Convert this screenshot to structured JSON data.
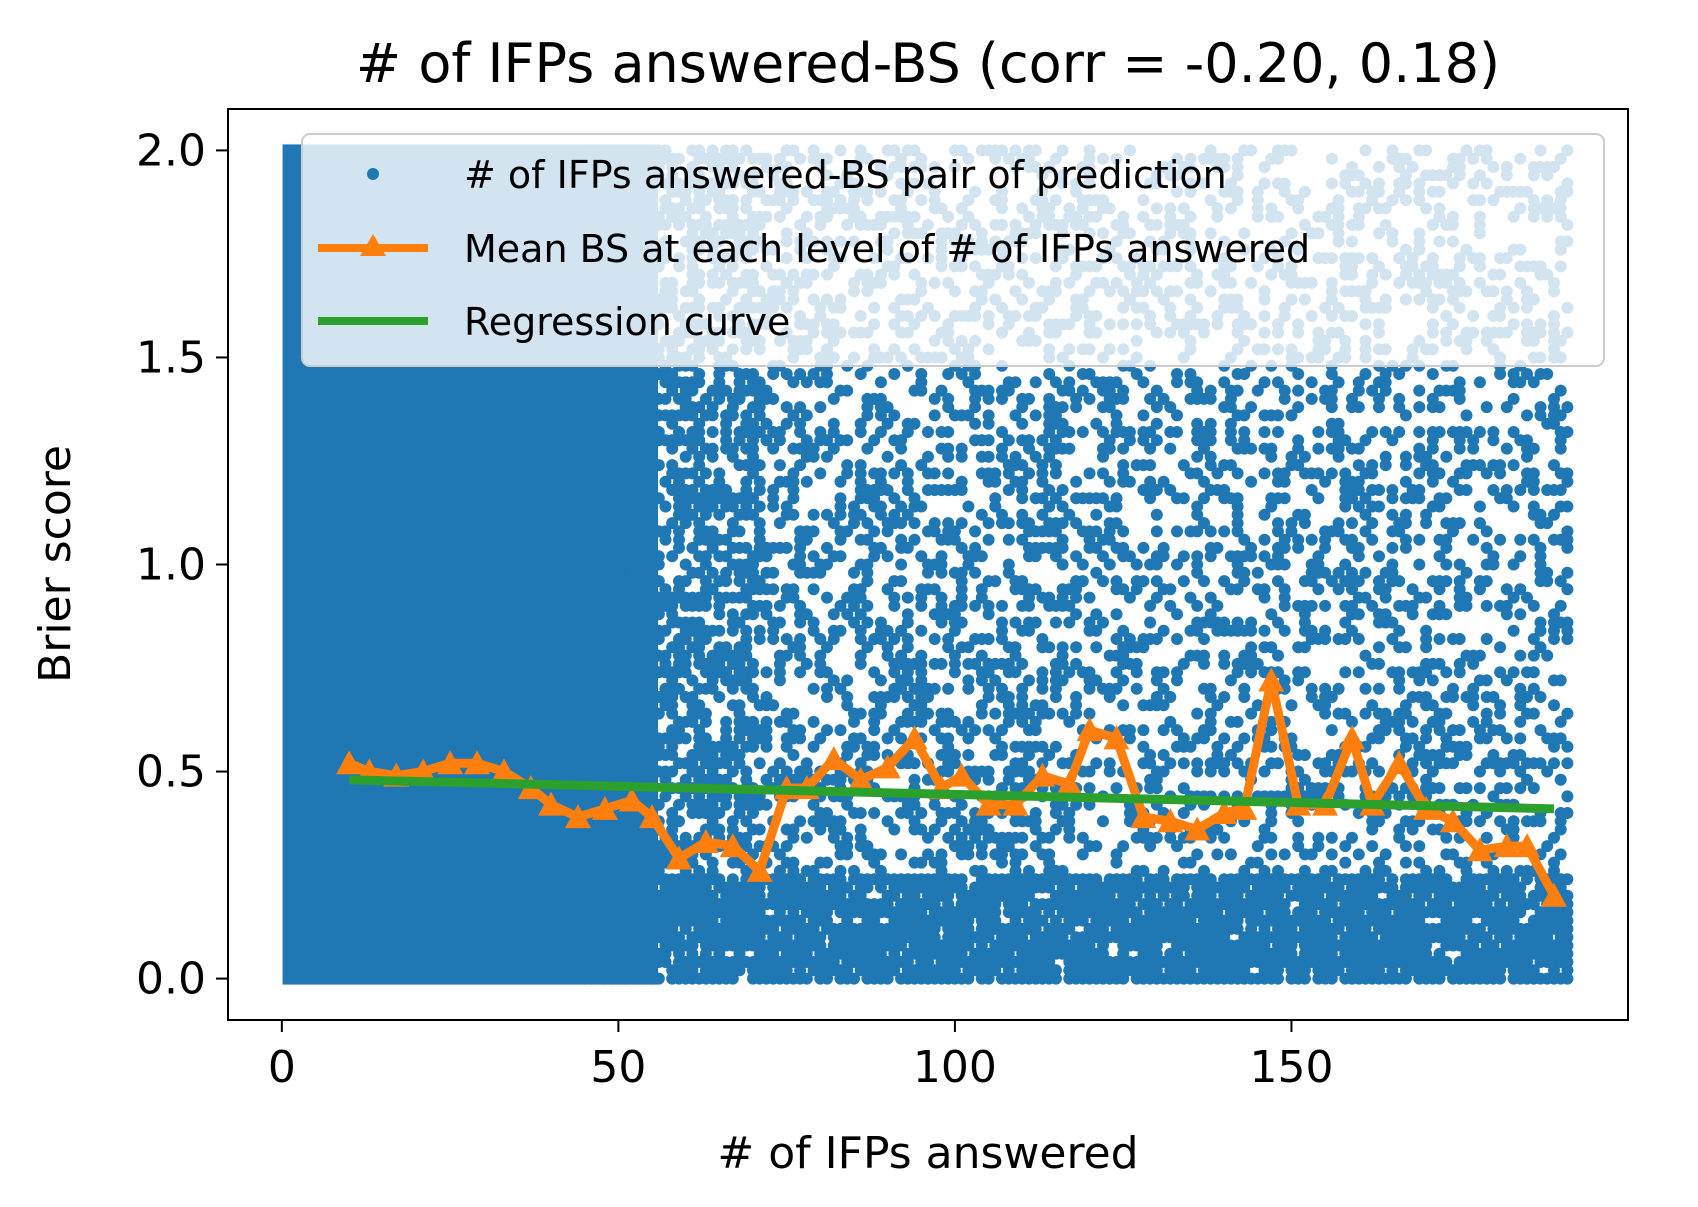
{
  "chart_data": {
    "type": "scatter",
    "title": "# of IFPs answered-BS (corr = -0.20, 0.18)",
    "xlabel": "# of IFPs answered",
    "ylabel": "Brier score",
    "xlim": [
      -8,
      200
    ],
    "ylim": [
      -0.1,
      2.1
    ],
    "xticks": [
      0,
      50,
      100,
      150
    ],
    "xtick_labels": [
      "0",
      "50",
      "100",
      "150"
    ],
    "yticks": [
      0.0,
      0.5,
      1.0,
      1.5,
      2.0
    ],
    "ytick_labels": [
      "0.0",
      "0.5",
      "1.0",
      "1.5",
      "2.0"
    ],
    "grid": false,
    "legend_position": "top-right",
    "colors": {
      "scatter": "#1f77b4",
      "mean": "#ff7f0e",
      "regression": "#2ca02c"
    },
    "scatter_summary": {
      "x_range": [
        1,
        191
      ],
      "y_range": [
        0.0,
        2.0
      ]
    },
    "series": [
      {
        "name": "# of IFPs answered-BS pair of prediction",
        "kind": "scatter"
      },
      {
        "name": "Mean BS at each level of # of IFPs answered",
        "kind": "line",
        "marker": "triangle",
        "x": [
          10,
          13,
          17,
          21,
          25,
          29,
          33,
          37,
          40,
          44,
          48,
          52,
          55,
          59,
          63,
          67,
          71,
          75,
          78,
          82,
          86,
          90,
          94,
          98,
          101,
          105,
          109,
          113,
          117,
          120,
          124,
          128,
          132,
          136,
          140,
          143,
          147,
          151,
          155,
          159,
          162,
          166,
          170,
          174,
          178,
          182,
          185,
          189
        ],
        "y": [
          0.52,
          0.5,
          0.49,
          0.5,
          0.52,
          0.52,
          0.5,
          0.46,
          0.42,
          0.39,
          0.41,
          0.43,
          0.39,
          0.29,
          0.33,
          0.32,
          0.26,
          0.46,
          0.46,
          0.53,
          0.48,
          0.51,
          0.58,
          0.46,
          0.49,
          0.42,
          0.42,
          0.49,
          0.47,
          0.6,
          0.58,
          0.39,
          0.38,
          0.36,
          0.4,
          0.41,
          0.72,
          0.42,
          0.42,
          0.58,
          0.42,
          0.52,
          0.41,
          0.38,
          0.31,
          0.32,
          0.32,
          0.2
        ]
      },
      {
        "name": "Regression curve",
        "kind": "line",
        "x": [
          10,
          189
        ],
        "y": [
          0.48,
          0.41
        ]
      }
    ]
  }
}
